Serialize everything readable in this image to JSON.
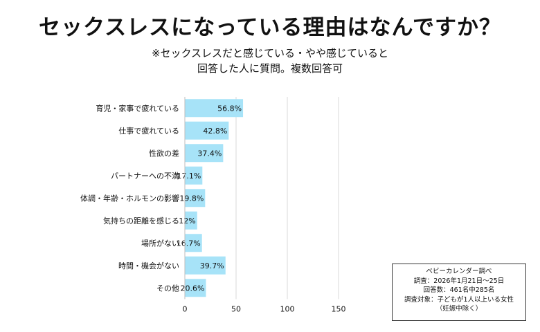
{
  "title": "セックスレスになっている理由はなんですか？",
  "subtitle_line1": "※セックスレスだと感じている・やや感じていると",
  "subtitle_line2": "回答した人に質問。複数回答可",
  "colors": {
    "bar": "#a7e3f8",
    "grid": "#d9d9d9",
    "text": "#111111"
  },
  "chart_data": {
    "type": "bar",
    "orientation": "horizontal",
    "categories": [
      "育児・家事で疲れている",
      "仕事で疲れている",
      "性欲の差",
      "パートナーへの不満",
      "体調・年齢・ホルモンの影響",
      "気持ちの距離を感じる",
      "場所がない",
      "時間・機会がない",
      "その他"
    ],
    "values": [
      56.8,
      42.8,
      37.4,
      17.1,
      19.8,
      12,
      16.7,
      39.7,
      20.6
    ],
    "data_labels": [
      "56.8%",
      "42.8%",
      "37.4%",
      "17.1%",
      "19.8%",
      "12%",
      "16.7%",
      "39.7%",
      "20.6%"
    ],
    "xlim": [
      0,
      150
    ],
    "xticks": [
      0,
      50,
      100,
      150
    ],
    "grid": true
  },
  "source": {
    "line1": "ベビーカレンダー調べ",
    "line2": "調査：2026年1月21日〜25日",
    "line3": "回答数：461名中285名",
    "line4": "調査対象：子どもが1人以上いる女性",
    "line5": "（妊娠中除く）"
  }
}
